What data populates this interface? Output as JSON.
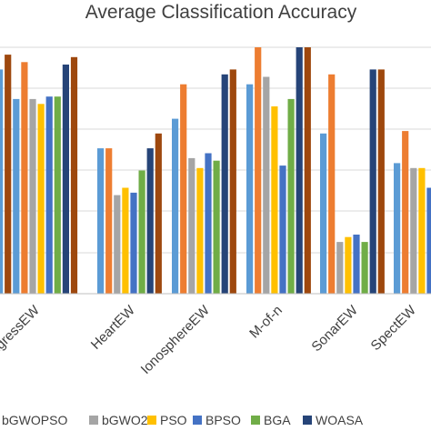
{
  "chart_data": {
    "type": "bar",
    "title": "Average Classification Accuracy",
    "xlabel": "",
    "ylabel": "",
    "ylim": [
      0,
      100
    ],
    "grid": true,
    "legend_position": "bottom",
    "categories": [
      "CongressEW",
      "HeartEW",
      "IonosphereEW",
      "M-of-n",
      "SonarEW",
      "SpectEW"
    ],
    "series": [
      {
        "name": "",
        "color": "#264478",
        "values": [
          null,
          null,
          null,
          null,
          null,
          null
        ]
      },
      {
        "name": "",
        "color": "#9e480e",
        "values": [
          null,
          null,
          null,
          null,
          null,
          null
        ]
      },
      {
        "name": "",
        "color": "#4472c4",
        "values": [
          null,
          null,
          null,
          null,
          null,
          null
        ]
      },
      {
        "name": "bGWOPSO",
        "color": "#ed7d31",
        "values": [
          null,
          null,
          null,
          null,
          null,
          null
        ]
      },
      {
        "name": "bGWO2",
        "color": "#a5a5a5",
        "values": [
          null,
          null,
          null,
          null,
          null,
          null
        ]
      },
      {
        "name": "PSO",
        "color": "#ffc000",
        "values": [
          null,
          null,
          null,
          null,
          null,
          null
        ]
      },
      {
        "name": "BPSO",
        "color": "#4472c4",
        "values": [
          null,
          null,
          null,
          null,
          null,
          null
        ]
      },
      {
        "name": "BGA",
        "color": "#70ad47",
        "values": [
          null,
          null,
          null,
          null,
          null,
          null
        ]
      },
      {
        "name": "WOASA",
        "color": "#264478",
        "values": [
          null,
          null,
          null,
          null,
          null,
          null
        ]
      }
    ],
    "bars": [
      [
        {
          "color": "#5b9bd5",
          "value": 91
        },
        {
          "color": "#9e480e",
          "value": 97
        },
        {
          "color": "#5b9bd5",
          "value": 79
        },
        {
          "color": "#ed7d31",
          "value": 94
        },
        {
          "color": "#a5a5a5",
          "value": 79
        },
        {
          "color": "#ffc000",
          "value": 77
        },
        {
          "color": "#4472c4",
          "value": 80
        },
        {
          "color": "#70ad47",
          "value": 80
        },
        {
          "color": "#264478",
          "value": 93
        },
        {
          "color": "#9e480e",
          "value": 96
        }
      ],
      [
        {
          "color": "#5b9bd5",
          "value": 59
        },
        {
          "color": "#ed7d31",
          "value": 59
        },
        {
          "color": "#a5a5a5",
          "value": 40
        },
        {
          "color": "#ffc000",
          "value": 43
        },
        {
          "color": "#4472c4",
          "value": 41
        },
        {
          "color": "#70ad47",
          "value": 50
        },
        {
          "color": "#264478",
          "value": 59
        },
        {
          "color": "#9e480e",
          "value": 65
        }
      ],
      [
        {
          "color": "#5b9bd5",
          "value": 71
        },
        {
          "color": "#ed7d31",
          "value": 85
        },
        {
          "color": "#a5a5a5",
          "value": 55
        },
        {
          "color": "#ffc000",
          "value": 51
        },
        {
          "color": "#4472c4",
          "value": 57
        },
        {
          "color": "#70ad47",
          "value": 54
        },
        {
          "color": "#264478",
          "value": 89
        },
        {
          "color": "#9e480e",
          "value": 91
        }
      ],
      [
        {
          "color": "#5b9bd5",
          "value": 85
        },
        {
          "color": "#ed7d31",
          "value": 100
        },
        {
          "color": "#a5a5a5",
          "value": 88
        },
        {
          "color": "#ffc000",
          "value": 76
        },
        {
          "color": "#4472c4",
          "value": 52
        },
        {
          "color": "#70ad47",
          "value": 79
        },
        {
          "color": "#264478",
          "value": 100
        },
        {
          "color": "#9e480e",
          "value": 100
        }
      ],
      [
        {
          "color": "#5b9bd5",
          "value": 65
        },
        {
          "color": "#ed7d31",
          "value": 89
        },
        {
          "color": "#a5a5a5",
          "value": 21
        },
        {
          "color": "#ffc000",
          "value": 23
        },
        {
          "color": "#4472c4",
          "value": 24
        },
        {
          "color": "#70ad47",
          "value": 21
        },
        {
          "color": "#264478",
          "value": 91
        },
        {
          "color": "#9e480e",
          "value": 91
        }
      ],
      [
        {
          "color": "#5b9bd5",
          "value": 53
        },
        {
          "color": "#ed7d31",
          "value": 66
        },
        {
          "color": "#a5a5a5",
          "value": 51
        },
        {
          "color": "#ffc000",
          "value": 51
        },
        {
          "color": "#4472c4",
          "value": 43
        },
        {
          "color": "#70ad47",
          "value": null
        }
      ]
    ],
    "tick_labels": [
      "ongressEW",
      "HeartEW",
      "IonosphereEW",
      "M-of-n",
      "SonarEW",
      "SpectEW"
    ],
    "legend": [
      {
        "label": "bGWOPSO",
        "color": "#ed7d31"
      },
      {
        "label": "bGWO2",
        "color": "#a5a5a5"
      },
      {
        "label": "PSO",
        "color": "#ffc000"
      },
      {
        "label": "BPSO",
        "color": "#4472c4"
      },
      {
        "label": "BGA",
        "color": "#70ad47"
      },
      {
        "label": "WOASA",
        "color": "#264478"
      }
    ]
  }
}
